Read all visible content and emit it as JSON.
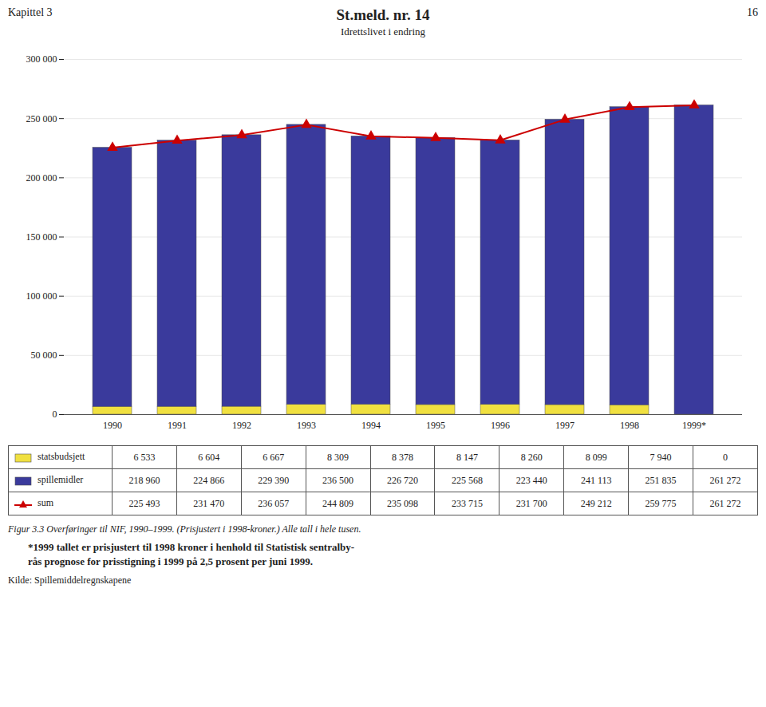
{
  "chart_data": {
    "type": "bar",
    "stacked": true,
    "title": "St.meld. nr. 14",
    "subtitle": "Idrettslivet i endring",
    "annotations": [
      "Kapittel 3",
      "16",
      "Figur 3.3 Overføringer til NIF, 1990–1999. (Prisjustert i 1998-kroner.) Alle tall i hele tusen.",
      "*1999 tallet er prisjustert til 1998 kroner i henhold til Statistisk sentralby-",
      "rås prognose for prisstigning i 1999 på 2,5 prosent per juni 1999.",
      "Kilde: Spillemiddelregnskapene"
    ],
    "categories": [
      "1990",
      "1991",
      "1992",
      "1993",
      "1994",
      "1995",
      "1996",
      "1997",
      "1998",
      "1999*"
    ],
    "series": [
      {
        "name": "statsbudsjett",
        "type": "bar",
        "color": "#f0e040",
        "values": [
          6533,
          6604,
          6667,
          8309,
          8378,
          8147,
          8260,
          8099,
          7940,
          0
        ],
        "value_labels": [
          "6 533",
          "6 604",
          "6 667",
          "8 309",
          "8 378",
          "8 147",
          "8 260",
          "8 099",
          "7 940",
          "0"
        ]
      },
      {
        "name": "spillemidler",
        "type": "bar",
        "color": "#3a3a9c",
        "values": [
          218960,
          224866,
          229390,
          236500,
          226720,
          225568,
          223440,
          241113,
          251835,
          261272
        ],
        "value_labels": [
          "218 960",
          "224 866",
          "229 390",
          "236 500",
          "226 720",
          "225 568",
          "223 440",
          "241 113",
          "251 835",
          "261 272"
        ]
      },
      {
        "name": "sum",
        "type": "line",
        "color": "#cc0000",
        "marker": "triangle",
        "line_style": "solid",
        "values": [
          225493,
          231470,
          236057,
          244809,
          235098,
          233715,
          231700,
          249212,
          259775,
          261272
        ],
        "value_labels": [
          "225 493",
          "231 470",
          "236 057",
          "244 809",
          "235 098",
          "233 715",
          "231 700",
          "249 212",
          "259 775",
          "261 272"
        ]
      }
    ],
    "ylim": [
      0,
      300000
    ],
    "yticks": [
      0,
      {
        "value": 50000,
        "label": "50 000"
      },
      {
        "value": 100000,
        "label": "100 000"
      },
      {
        "value": 150000,
        "label": "150 000"
      },
      {
        "value": 200000,
        "label": "200 000"
      },
      {
        "value": 250000,
        "label": "250 000"
      },
      {
        "value": 300000,
        "label": "300 000"
      }
    ],
    "grid": true,
    "legend": "bottom"
  }
}
